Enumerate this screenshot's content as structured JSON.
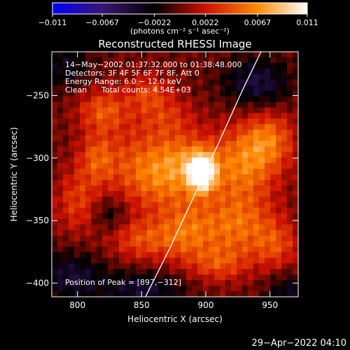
{
  "chart_data": {
    "type": "heatmap",
    "title": "Reconstructed RHESSI Image",
    "xlabel": "Heliocentric X (arcsec)",
    "ylabel": "Heliocentric Y (arcsec)",
    "xlim": [
      780,
      972
    ],
    "ylim": [
      -411,
      -215
    ],
    "x_ticks": [
      800,
      850,
      900,
      950
    ],
    "y_ticks": [
      -250,
      -300,
      -350,
      -400
    ],
    "x_tick_labels": [
      "800",
      "850",
      "900",
      "950"
    ],
    "y_tick_labels": [
      "−250",
      "−300",
      "−350",
      "−400"
    ],
    "grid": false,
    "colorbar": {
      "min": -0.011,
      "max": 0.011,
      "ticks": [
        -0.011,
        -0.0067,
        -0.0022,
        0.0022,
        0.0067,
        0.011
      ],
      "tick_labels": [
        "−0.011",
        "−0.0067",
        "−0.0022",
        "0.0022",
        "0.0067",
        "0.011"
      ],
      "unit_label": "(photons cm⁻² s⁻¹ asec⁻²)",
      "colors": [
        "#0000ff",
        "#3a1570",
        "#000000",
        "#cc1100",
        "#ff8800",
        "#ffffff"
      ]
    },
    "annotations": [
      "14−May−2002 01:37:32.000 to 01:38:48.000",
      "Detectors: 3F 4F 5F 6F 7F 8F, Att 0",
      "Energy Range: 6.0 − 12.0 keV",
      "Clean",
      "Total counts: 4.54E+03"
    ],
    "peak_label": "Position of Peak = [897,−312]",
    "peak": {
      "x": 897,
      "y": -312,
      "value": 0.011
    },
    "limb_points": [
      [
        853,
        -411
      ],
      [
        872,
        -372
      ],
      [
        891,
        -330
      ],
      [
        910,
        -288
      ],
      [
        928,
        -247
      ],
      [
        943,
        -215
      ]
    ],
    "sources": [
      {
        "x": 897,
        "y": -312,
        "amp": 0.011,
        "rx": 7,
        "ry": 10
      },
      {
        "x": 885,
        "y": -300,
        "amp": 0.004,
        "rx": 18,
        "ry": 14
      },
      {
        "x": 870,
        "y": -320,
        "amp": 0.0045,
        "rx": 25,
        "ry": 18
      },
      {
        "x": 845,
        "y": -300,
        "amp": 0.003,
        "rx": 20,
        "ry": 20
      },
      {
        "x": 820,
        "y": -262,
        "amp": 0.0045,
        "rx": 14,
        "ry": 12
      },
      {
        "x": 815,
        "y": -300,
        "amp": 0.0038,
        "rx": 10,
        "ry": 14
      },
      {
        "x": 800,
        "y": -335,
        "amp": 0.0035,
        "rx": 12,
        "ry": 18
      },
      {
        "x": 855,
        "y": -248,
        "amp": 0.0035,
        "rx": 12,
        "ry": 10
      },
      {
        "x": 930,
        "y": -305,
        "amp": 0.0055,
        "rx": 18,
        "ry": 22
      },
      {
        "x": 950,
        "y": -285,
        "amp": 0.0045,
        "rx": 14,
        "ry": 16
      },
      {
        "x": 925,
        "y": -355,
        "amp": 0.005,
        "rx": 20,
        "ry": 18
      },
      {
        "x": 885,
        "y": -360,
        "amp": 0.0045,
        "rx": 16,
        "ry": 16
      },
      {
        "x": 850,
        "y": -365,
        "amp": 0.004,
        "rx": 18,
        "ry": 12
      },
      {
        "x": 955,
        "y": -370,
        "amp": 0.0035,
        "rx": 12,
        "ry": 14
      },
      {
        "x": 910,
        "y": -385,
        "amp": 0.0035,
        "rx": 16,
        "ry": 10
      },
      {
        "x": 870,
        "y": -268,
        "amp": 0.003,
        "rx": 16,
        "ry": 12
      },
      {
        "x": 940,
        "y": -240,
        "amp": -0.0045,
        "rx": 18,
        "ry": 14
      },
      {
        "x": 795,
        "y": -395,
        "amp": -0.004,
        "rx": 18,
        "ry": 14
      },
      {
        "x": 850,
        "y": -405,
        "amp": -0.004,
        "rx": 22,
        "ry": 10
      },
      {
        "x": 790,
        "y": -225,
        "amp": -0.003,
        "rx": 14,
        "ry": 14
      },
      {
        "x": 965,
        "y": -410,
        "amp": -0.0035,
        "rx": 12,
        "ry": 12
      },
      {
        "x": 825,
        "y": -345,
        "amp": -0.0025,
        "rx": 10,
        "ry": 10
      }
    ]
  },
  "timestamp": "29−Apr−2022 04:10"
}
